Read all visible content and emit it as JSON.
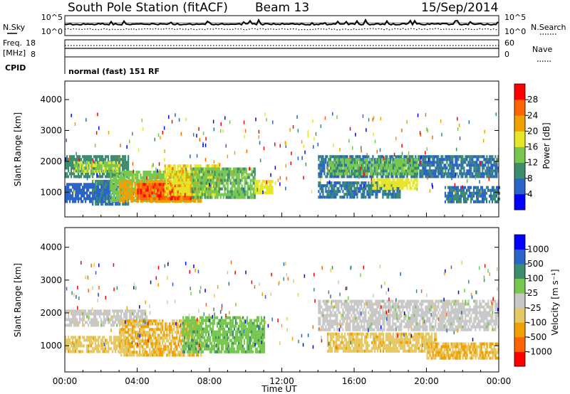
{
  "header": {
    "title": "South Pole Station (fitACF)",
    "beam": "Beam 13",
    "date": "15/Sep/2014"
  },
  "sky_panel": {
    "left_label": "N.Sky",
    "right_label": "N.Search",
    "left_ticks": [
      "10^5",
      "10^0"
    ],
    "right_ticks": [
      "10^5",
      "10^0"
    ]
  },
  "freq_panel": {
    "left_label_line1": "Freq.",
    "left_label_line2": "[MHz]",
    "right_label": "Nave",
    "left_ticks": [
      "18",
      "8"
    ],
    "right_ticks": [
      "60",
      "0"
    ]
  },
  "cpid": {
    "label": "CPID",
    "value": "normal (fast) 151 RF"
  },
  "colors": {
    "power_scale": [
      "#0000ff",
      "#2a64c8",
      "#3c8c6e",
      "#78c850",
      "#e6e628",
      "#f0a000",
      "#ff6400",
      "#ff0000"
    ],
    "velocity_scale": [
      "#ff0000",
      "#ff6400",
      "#f0a000",
      "#e6c864",
      "#c8c8c8",
      "#78c850",
      "#3c8c6e",
      "#2a64c8",
      "#0000ff"
    ]
  },
  "chart_data": [
    {
      "type": "heatmap",
      "name": "power",
      "ylabel": "Slant Range [km]",
      "yticks": [
        1000,
        2000,
        3000,
        4000
      ],
      "ylim": [
        200,
        4600
      ],
      "xlim": [
        0,
        24
      ],
      "colorbar": {
        "label": "Power [dB]",
        "ticks": [
          "4",
          "8",
          "12",
          "16",
          "20",
          "24",
          "28"
        ],
        "range": [
          0,
          32
        ]
      },
      "regions": [
        {
          "x": [
            0.0,
            3.5
          ],
          "y": [
            1550,
            2200
          ],
          "level": 10
        },
        {
          "x": [
            0.5,
            3.0
          ],
          "y": [
            1700,
            2000
          ],
          "level": 16
        },
        {
          "x": [
            0.0,
            2.5
          ],
          "y": [
            700,
            1300
          ],
          "level": 6
        },
        {
          "x": [
            1.5,
            3.5
          ],
          "y": [
            600,
            1400
          ],
          "level": 8
        },
        {
          "x": [
            2.5,
            7.5
          ],
          "y": [
            700,
            1700
          ],
          "level": 14
        },
        {
          "x": [
            3.0,
            7.5
          ],
          "y": [
            700,
            1400
          ],
          "level": 22
        },
        {
          "x": [
            4.0,
            7.0
          ],
          "y": [
            750,
            1300
          ],
          "level": 27
        },
        {
          "x": [
            5.5,
            8.5
          ],
          "y": [
            900,
            1900
          ],
          "level": 19
        },
        {
          "x": [
            7.0,
            10.5
          ],
          "y": [
            800,
            1800
          ],
          "level": 13
        },
        {
          "x": [
            10.5,
            11.5
          ],
          "y": [
            1000,
            1400
          ],
          "level": 18
        },
        {
          "x": [
            14.0,
            24.0
          ],
          "y": [
            1500,
            2200
          ],
          "level": 8
        },
        {
          "x": [
            14.5,
            19.5
          ],
          "y": [
            1600,
            2100
          ],
          "level": 13
        },
        {
          "x": [
            14.0,
            18.5
          ],
          "y": [
            850,
            1350
          ],
          "level": 8
        },
        {
          "x": [
            17.0,
            19.5
          ],
          "y": [
            1100,
            1450
          ],
          "level": 18
        },
        {
          "x": [
            21.0,
            24.0
          ],
          "y": [
            700,
            1200
          ],
          "level": 8
        }
      ]
    },
    {
      "type": "heatmap",
      "name": "velocity",
      "ylabel": "Slant Range [km]",
      "xlabel": "Time UT",
      "xticks": [
        "00:00",
        "04:00",
        "08:00",
        "12:00",
        "16:00",
        "20:00",
        "00:00"
      ],
      "yticks": [
        1000,
        2000,
        3000,
        4000
      ],
      "ylim": [
        200,
        4600
      ],
      "xlim": [
        0,
        24
      ],
      "colorbar": {
        "label": "Velocity [m s⁻¹]",
        "ticks": [
          "-1000",
          "-500",
          "-100",
          "-25",
          "25",
          "100",
          "500",
          "1000"
        ],
        "range": [
          -1250,
          1250
        ]
      },
      "regions": [
        {
          "x": [
            0.0,
            4.5
          ],
          "y": [
            1600,
            2100
          ],
          "level": 0
        },
        {
          "x": [
            0.0,
            3.5
          ],
          "y": [
            800,
            1300
          ],
          "level": -300
        },
        {
          "x": [
            3.0,
            7.5
          ],
          "y": [
            700,
            1800
          ],
          "level": -400
        },
        {
          "x": [
            6.5,
            11.0
          ],
          "y": [
            800,
            1900
          ],
          "level": 300
        },
        {
          "x": [
            14.0,
            24.0
          ],
          "y": [
            1500,
            2400
          ],
          "level": 0
        },
        {
          "x": [
            14.5,
            20.5
          ],
          "y": [
            800,
            1400
          ],
          "level": -300
        },
        {
          "x": [
            20.0,
            24.0
          ],
          "y": [
            600,
            1100
          ],
          "level": -400
        }
      ]
    }
  ]
}
